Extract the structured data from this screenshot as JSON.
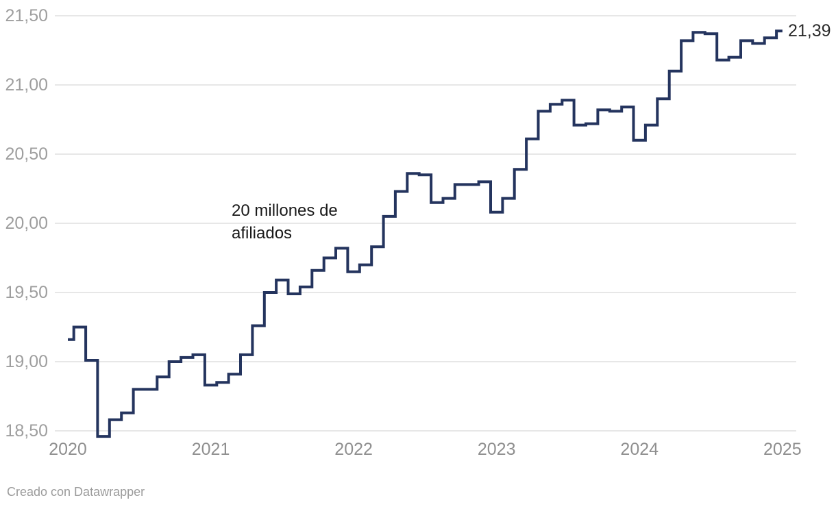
{
  "annotation": {
    "line1": "20 millones de",
    "line2": "afiliados"
  },
  "end_label": "21,39",
  "footer": {
    "credit_label": "Creado con Datawrapper"
  },
  "colors": {
    "line": "#24345e",
    "grid": "#e7e7e7",
    "y_tick_text": "#9e9e9e",
    "x_tick_text": "#8f8f8f",
    "annotation_text": "#1a1a1a",
    "end_label_text": "#2b2b2b"
  },
  "chart_data": {
    "type": "line",
    "line_style": "step",
    "title": "",
    "xlabel": "",
    "ylabel": "",
    "unit": "millones de afiliados",
    "frequency": "monthly",
    "x_range": [
      "2020-01",
      "2025-01"
    ],
    "ylim": [
      18.5,
      21.5
    ],
    "grid": "horizontal",
    "legend": "none",
    "y_ticks": {
      "values": [
        21.5,
        21.0,
        20.5,
        20.0,
        19.5,
        19.0,
        18.5
      ],
      "labels": [
        "21,50",
        "21,00",
        "20,50",
        "20,00",
        "19,50",
        "19,00",
        "18,50"
      ]
    },
    "x_ticks": {
      "labels": [
        "2020",
        "2021",
        "2022",
        "2023",
        "2024",
        "2025"
      ]
    },
    "annotation_text": "20 millones de afiliados",
    "last_value_label": "21,39",
    "series": [
      {
        "year": 2020,
        "monthly": [
          19.16,
          19.25,
          19.01,
          18.46,
          18.58,
          18.63,
          18.8,
          18.8,
          18.89,
          19.0,
          19.03,
          19.05
        ]
      },
      {
        "year": 2021,
        "monthly": [
          18.83,
          18.85,
          18.91,
          19.05,
          19.26,
          19.5,
          19.59,
          19.49,
          19.54,
          19.66,
          19.75,
          19.82
        ]
      },
      {
        "year": 2022,
        "monthly": [
          19.65,
          19.7,
          19.83,
          20.05,
          20.23,
          20.36,
          20.35,
          20.15,
          20.18,
          20.28,
          20.28,
          20.3
        ]
      },
      {
        "year": 2023,
        "monthly": [
          20.08,
          20.18,
          20.39,
          20.61,
          20.81,
          20.86,
          20.89,
          20.71,
          20.72,
          20.82,
          20.81,
          20.84
        ]
      },
      {
        "year": 2024,
        "monthly": [
          20.6,
          20.71,
          20.9,
          21.1,
          21.32,
          21.38,
          21.37,
          21.18,
          21.2,
          21.32,
          21.3,
          21.34
        ]
      },
      {
        "year": 2025,
        "monthly": [
          21.39
        ]
      }
    ]
  }
}
